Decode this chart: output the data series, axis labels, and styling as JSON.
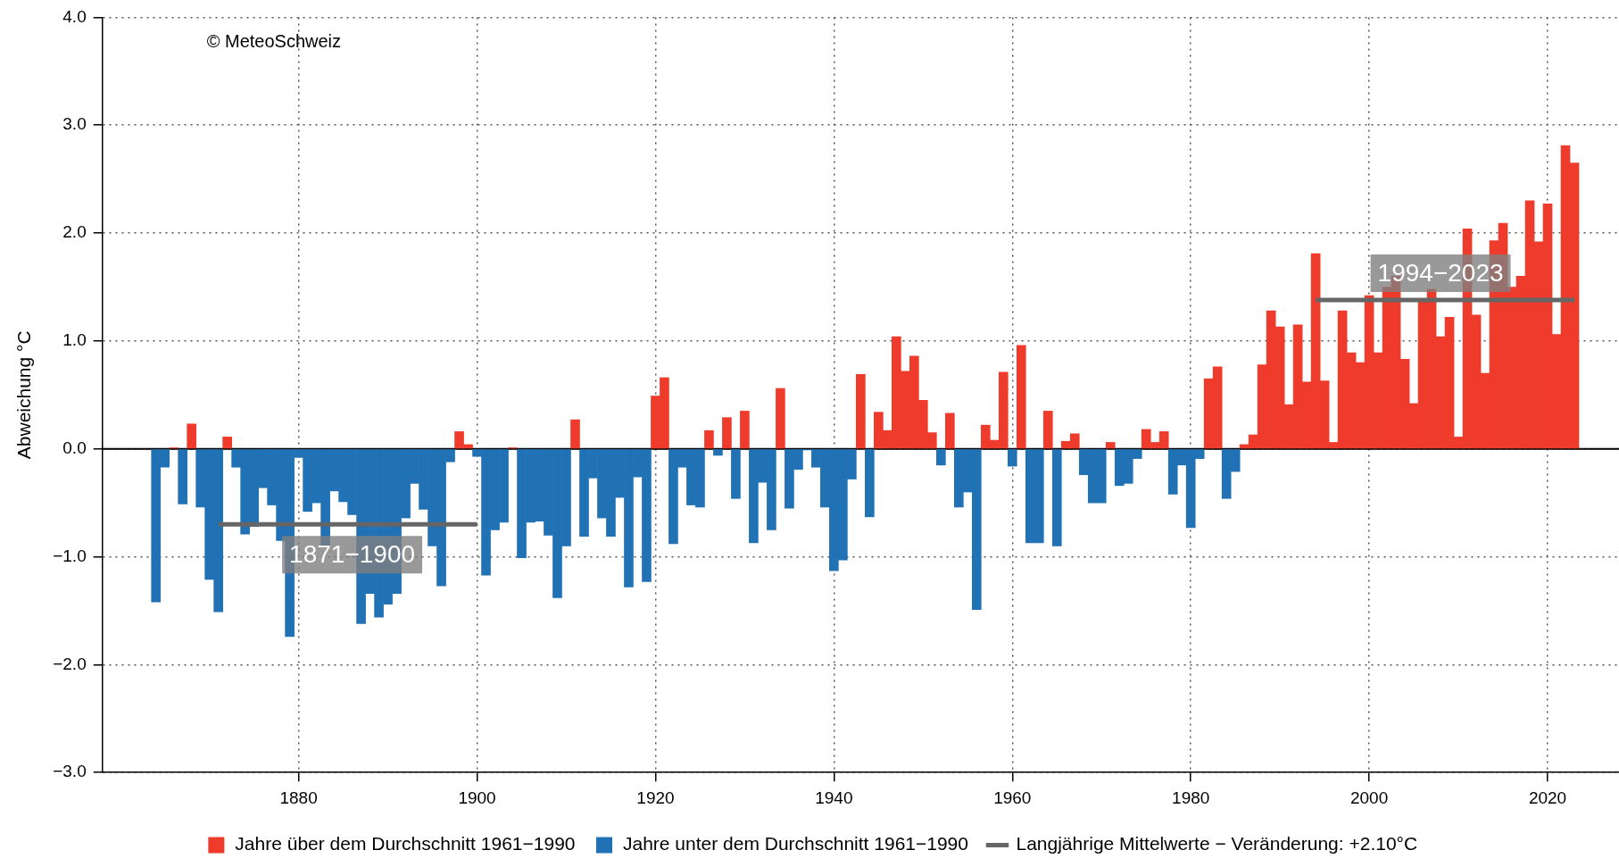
{
  "chart_data": {
    "type": "bar",
    "ylabel": "Abweichung °C",
    "xlim": [
      1858,
      2028
    ],
    "xticks": [
      1880,
      1900,
      1920,
      1940,
      1960,
      1980,
      2000,
      2020
    ],
    "ylim": [
      -3,
      4
    ],
    "yticks": [
      {
        "value": -3,
        "label": "−3.0"
      },
      {
        "value": -2,
        "label": "−2.0"
      },
      {
        "value": -1,
        "label": "−1.0"
      },
      {
        "value": 0,
        "label": "0.0"
      },
      {
        "value": 1,
        "label": "1.0"
      },
      {
        "value": 2,
        "label": "2.0"
      },
      {
        "value": 3,
        "label": "3.0"
      },
      {
        "value": 4,
        "label": "4.0"
      }
    ],
    "grid": true,
    "legend": "bottom",
    "ref_lines": [
      {
        "axis": "y",
        "value": 0,
        "color": "#000000"
      }
    ],
    "annotations": [
      "© MeteoSchweiz",
      {
        "text": "1871−1900",
        "x": 1886,
        "y": -0.7
      },
      {
        "text": "1994−2023",
        "x": 2008,
        "y": 1.38
      }
    ],
    "series": [
      {
        "name": "Jahre über dem Durchschnitt 1961−1990",
        "color": "#ef3b2c",
        "x": [
          1866,
          1868,
          1872,
          1898,
          1899,
          1904,
          1911,
          1920,
          1921,
          1926,
          1928,
          1930,
          1934,
          1943,
          1945,
          1946,
          1947,
          1948,
          1949,
          1950,
          1951,
          1953,
          1957,
          1958,
          1959,
          1961,
          1964,
          1966,
          1967,
          1971,
          1975,
          1976,
          1977,
          1982,
          1983,
          1986,
          1987,
          1988,
          1989,
          1990,
          1991,
          1992,
          1993,
          1994,
          1995,
          1996,
          1997,
          1998,
          1999,
          2000,
          2001,
          2002,
          2003,
          2004,
          2005,
          2006,
          2007,
          2008,
          2009,
          2010,
          2011,
          2012,
          2013,
          2014,
          2015,
          2016,
          2017,
          2018,
          2019,
          2020,
          2021,
          2022,
          2023
        ],
        "values": [
          0.01,
          0.23,
          0.11,
          0.16,
          0.04,
          0.01,
          0.27,
          0.49,
          0.66,
          0.17,
          0.29,
          0.35,
          0.56,
          0.69,
          0.34,
          0.17,
          1.04,
          0.72,
          0.86,
          0.45,
          0.15,
          0.33,
          0.22,
          0.08,
          0.71,
          0.96,
          0.35,
          0.07,
          0.14,
          0.06,
          0.18,
          0.06,
          0.16,
          0.65,
          0.76,
          0.04,
          0.13,
          0.78,
          1.28,
          1.13,
          0.41,
          1.15,
          0.62,
          1.81,
          0.63,
          0.06,
          1.28,
          0.89,
          0.8,
          1.42,
          0.89,
          1.5,
          1.6,
          0.83,
          0.42,
          1.36,
          1.48,
          1.04,
          1.22,
          0.11,
          2.04,
          1.24,
          0.7,
          1.93,
          2.09,
          1.5,
          1.6,
          2.3,
          1.92,
          2.27,
          1.06,
          2.81,
          2.65
        ]
      },
      {
        "name": "Jahre unter dem Durchschnitt 1961−1990",
        "color": "#2171b5",
        "x": [
          1864,
          1865,
          1867,
          1869,
          1870,
          1871,
          1873,
          1874,
          1875,
          1876,
          1877,
          1878,
          1879,
          1880,
          1881,
          1882,
          1883,
          1884,
          1885,
          1886,
          1887,
          1888,
          1889,
          1890,
          1891,
          1892,
          1893,
          1894,
          1895,
          1896,
          1897,
          1900,
          1901,
          1902,
          1903,
          1905,
          1906,
          1907,
          1908,
          1909,
          1910,
          1912,
          1913,
          1914,
          1915,
          1916,
          1917,
          1918,
          1919,
          1922,
          1923,
          1924,
          1925,
          1927,
          1929,
          1931,
          1932,
          1933,
          1935,
          1936,
          1937,
          1938,
          1939,
          1940,
          1941,
          1942,
          1944,
          1952,
          1954,
          1955,
          1956,
          1960,
          1962,
          1963,
          1965,
          1968,
          1969,
          1970,
          1972,
          1973,
          1974,
          1978,
          1979,
          1980,
          1981,
          1984,
          1985
        ],
        "values": [
          -1.42,
          -0.17,
          -0.51,
          -0.54,
          -1.21,
          -1.51,
          -0.17,
          -0.79,
          -0.72,
          -0.36,
          -0.52,
          -0.85,
          -1.74,
          -0.08,
          -0.58,
          -0.5,
          -0.9,
          -0.39,
          -0.49,
          -0.61,
          -1.62,
          -1.34,
          -1.56,
          -1.44,
          -1.34,
          -0.64,
          -0.32,
          -0.56,
          -0.9,
          -1.27,
          -0.12,
          -0.07,
          -1.17,
          -0.75,
          -0.68,
          -1.01,
          -0.68,
          -0.67,
          -0.8,
          -1.38,
          -0.9,
          -0.81,
          -0.27,
          -0.64,
          -0.81,
          -0.45,
          -1.28,
          -0.26,
          -1.23,
          -0.88,
          -0.17,
          -0.52,
          -0.54,
          -0.06,
          -0.46,
          -0.87,
          -0.31,
          -0.75,
          -0.55,
          -0.19,
          -0.01,
          -0.17,
          -0.54,
          -1.13,
          -1.03,
          -0.28,
          -0.63,
          -0.15,
          -0.54,
          -0.4,
          -1.49,
          -0.16,
          -0.87,
          -0.87,
          -0.9,
          -0.24,
          -0.5,
          -0.5,
          -0.34,
          -0.32,
          -0.09,
          -0.42,
          -0.15,
          -0.73,
          -0.09,
          -0.46,
          -0.21
        ]
      },
      {
        "name": "Langjährige Mittelwerte − Veränderung: +2.10°C",
        "type": "line",
        "color": "#666666",
        "marker": "none",
        "line_style": "solid",
        "x": [
          1871,
          1900,
          1947,
          1994,
          2023
        ],
        "values": [
          -0.7,
          -0.7,
          null,
          1.38,
          1.38
        ]
      }
    ]
  }
}
